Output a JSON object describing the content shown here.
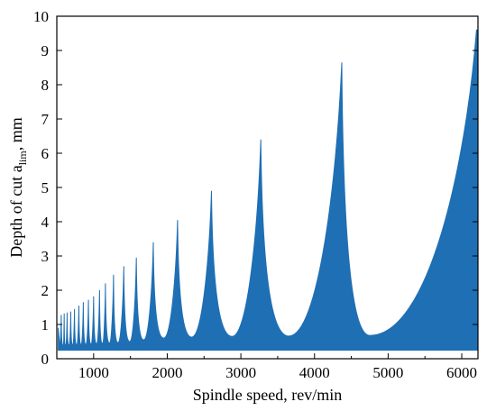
{
  "chart_data": {
    "type": "area",
    "title": "",
    "xlabel": "Spindle speed, rev/min",
    "ylabel": {
      "main": "Depth of cut a",
      "sub": "lim",
      "suffix": ", mm"
    },
    "xlim": [
      500,
      6220
    ],
    "ylim": [
      0,
      10
    ],
    "xticks": [
      1000,
      2000,
      3000,
      4000,
      5000,
      6000
    ],
    "yticks": [
      0,
      1,
      2,
      3,
      4,
      5,
      6,
      7,
      8,
      9,
      10
    ],
    "fill_color": "#1f6fb4",
    "grid": false,
    "legend": "none",
    "baseline": 0.25,
    "series": [
      {
        "lobe_min_peak_speeds": [
          [
            560,
            0.4,
            1.28
          ],
          [
            600,
            0.4,
            1.32
          ],
          [
            640,
            0.4,
            1.35
          ],
          [
            690,
            0.4,
            1.38
          ],
          [
            740,
            0.41,
            1.45
          ],
          [
            800,
            0.41,
            1.55
          ],
          [
            860,
            0.42,
            1.65
          ],
          [
            930,
            0.42,
            1.72
          ],
          [
            1000,
            0.43,
            1.82
          ],
          [
            1080,
            0.44,
            2.0
          ],
          [
            1160,
            0.45,
            2.2
          ],
          [
            1270,
            0.46,
            2.45
          ],
          [
            1410,
            0.48,
            2.7
          ],
          [
            1580,
            0.52,
            2.95
          ],
          [
            1810,
            0.57,
            3.4
          ],
          [
            2140,
            0.62,
            4.05
          ],
          [
            2600,
            0.65,
            4.9
          ],
          [
            3270,
            0.66,
            6.4
          ],
          [
            4370,
            0.67,
            8.65
          ],
          [
            6200,
            0.68,
            9.6
          ]
        ],
        "lobe_minima_speeds": [
          [
            540,
            0.4
          ],
          [
            585,
            0.4
          ],
          [
            620,
            0.4
          ],
          [
            665,
            0.4
          ],
          [
            715,
            0.41
          ],
          [
            770,
            0.41
          ],
          [
            830,
            0.42
          ],
          [
            895,
            0.42
          ],
          [
            965,
            0.43
          ],
          [
            1040,
            0.44
          ],
          [
            1120,
            0.45
          ],
          [
            1215,
            0.46
          ],
          [
            1330,
            0.47
          ],
          [
            1490,
            0.5
          ],
          [
            1680,
            0.55
          ],
          [
            1950,
            0.6
          ],
          [
            2330,
            0.63
          ],
          [
            2880,
            0.65
          ],
          [
            3650,
            0.66
          ],
          [
            4750,
            0.68
          ]
        ]
      }
    ]
  }
}
